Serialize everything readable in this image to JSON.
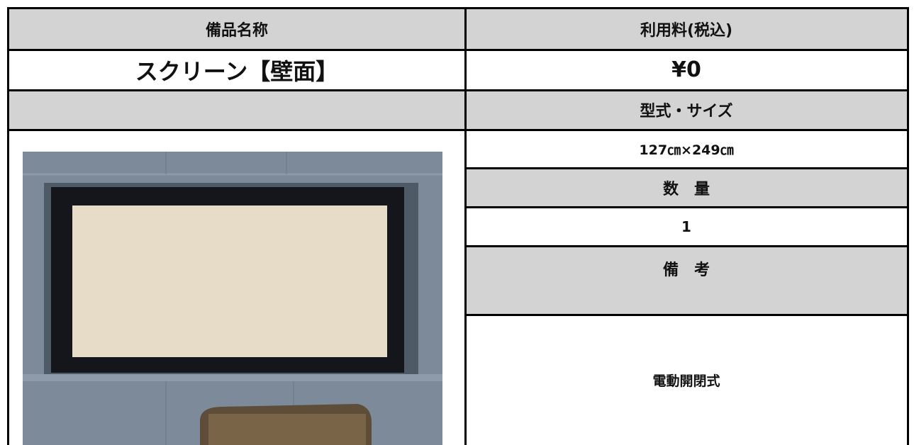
{
  "table": {
    "header": [
      "備品名称",
      "利用料(税込)"
    ],
    "item_name": "スクリーン【壁面】",
    "price": "¥0",
    "spec_label": "型式・サイズ",
    "spec": "127㎝×249㎝",
    "quantity_label": "数　量",
    "quantity": "1",
    "remarks_label": "備　考",
    "remarks": "電動開閉式"
  }
}
